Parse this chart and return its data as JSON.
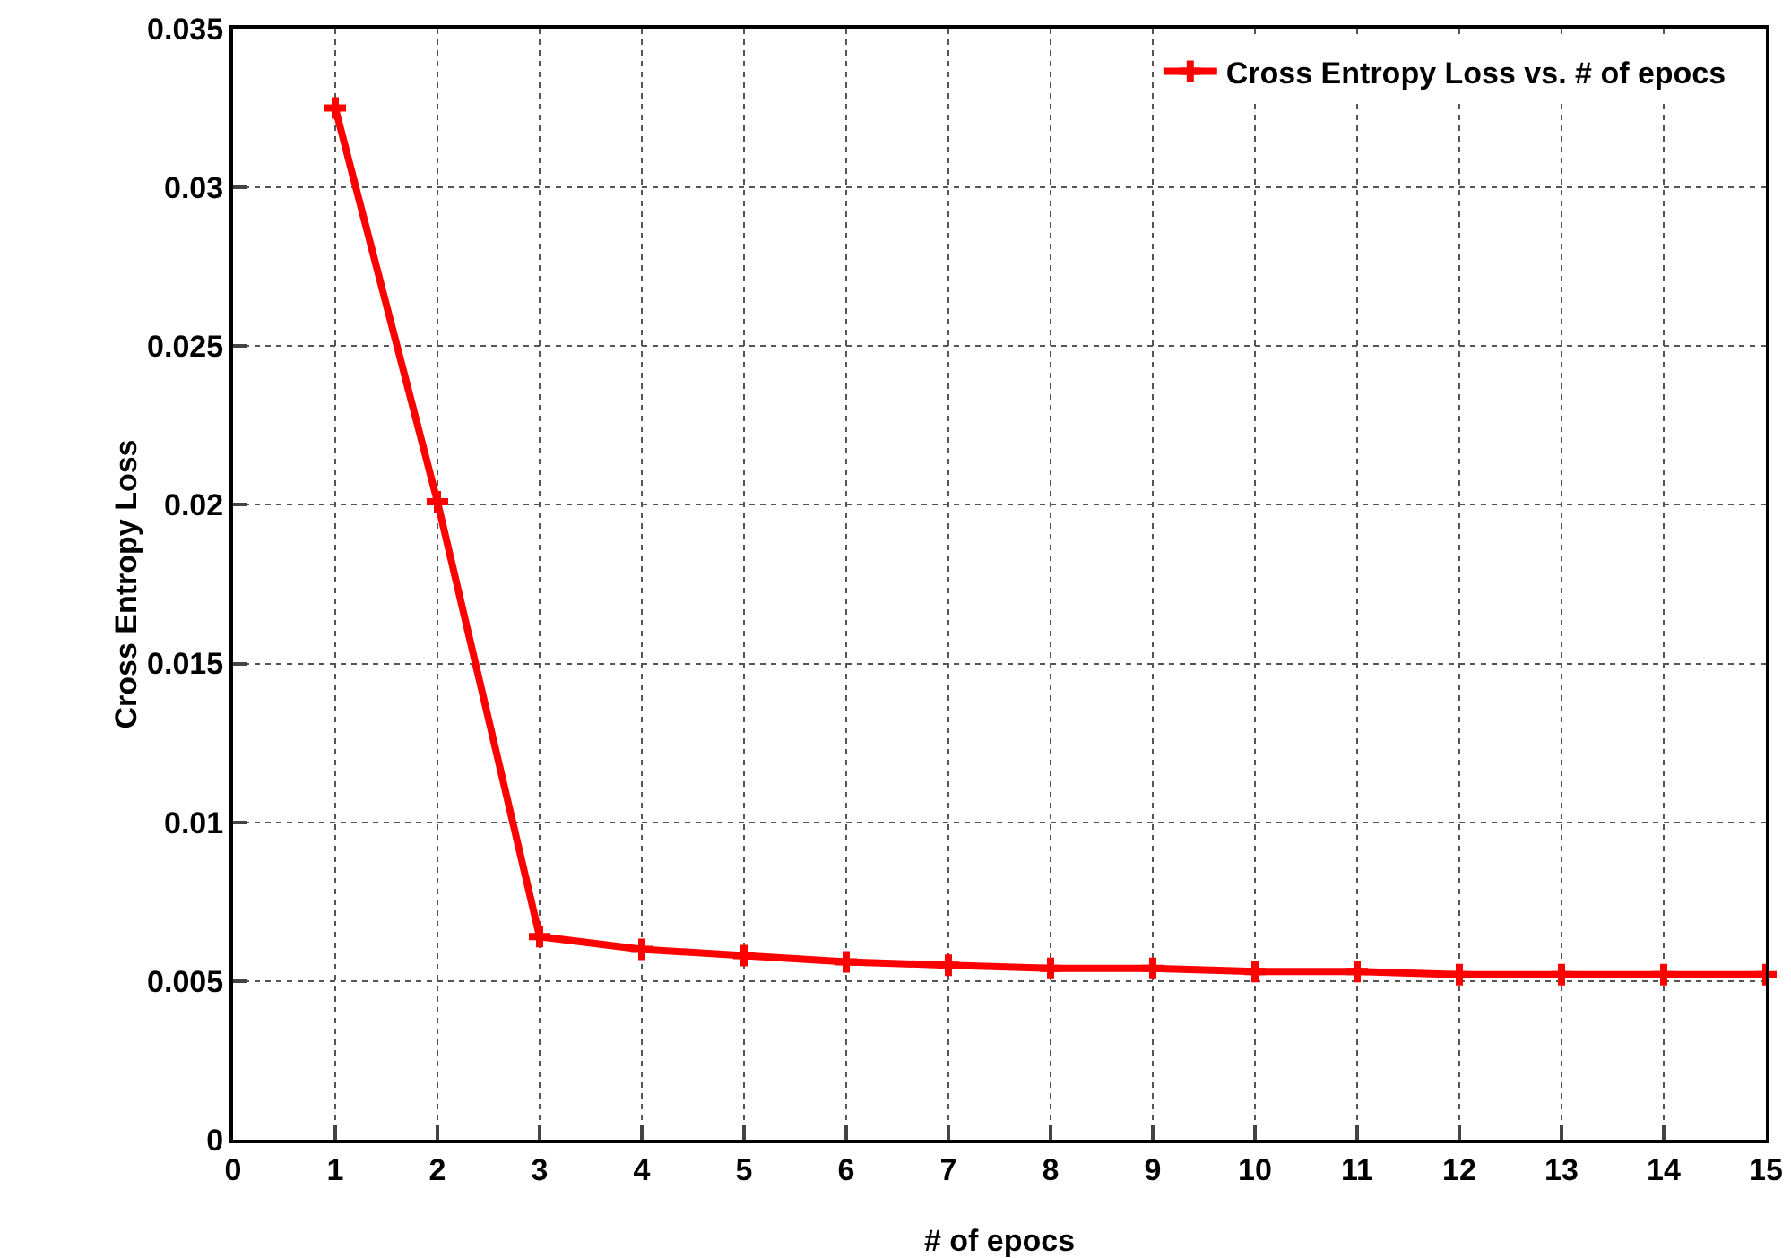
{
  "chart_data": {
    "type": "line",
    "xlabel": "# of epocs",
    "ylabel": "Cross Entropy Loss",
    "x": [
      1,
      2,
      3,
      4,
      5,
      6,
      7,
      8,
      9,
      10,
      11,
      12,
      13,
      14,
      15
    ],
    "series": [
      {
        "name": "Cross Entropy Loss vs. # of epocs",
        "color": "#ff0000",
        "values": [
          0.0325,
          0.0201,
          0.0064,
          0.006,
          0.0058,
          0.0056,
          0.0055,
          0.0054,
          0.0054,
          0.0053,
          0.0053,
          0.0052,
          0.0052,
          0.0052,
          0.0052
        ]
      }
    ],
    "xlim": [
      0,
      15
    ],
    "xticks": [
      0,
      1,
      2,
      3,
      4,
      5,
      6,
      7,
      8,
      9,
      10,
      11,
      12,
      13,
      14,
      15
    ],
    "ylim": [
      0,
      0.035
    ],
    "yticks": [
      0,
      0.005,
      0.01,
      0.015,
      0.02,
      0.025,
      0.03,
      0.035
    ],
    "grid": true,
    "legend": "top right",
    "marker": "cross",
    "line_style": "solid"
  }
}
